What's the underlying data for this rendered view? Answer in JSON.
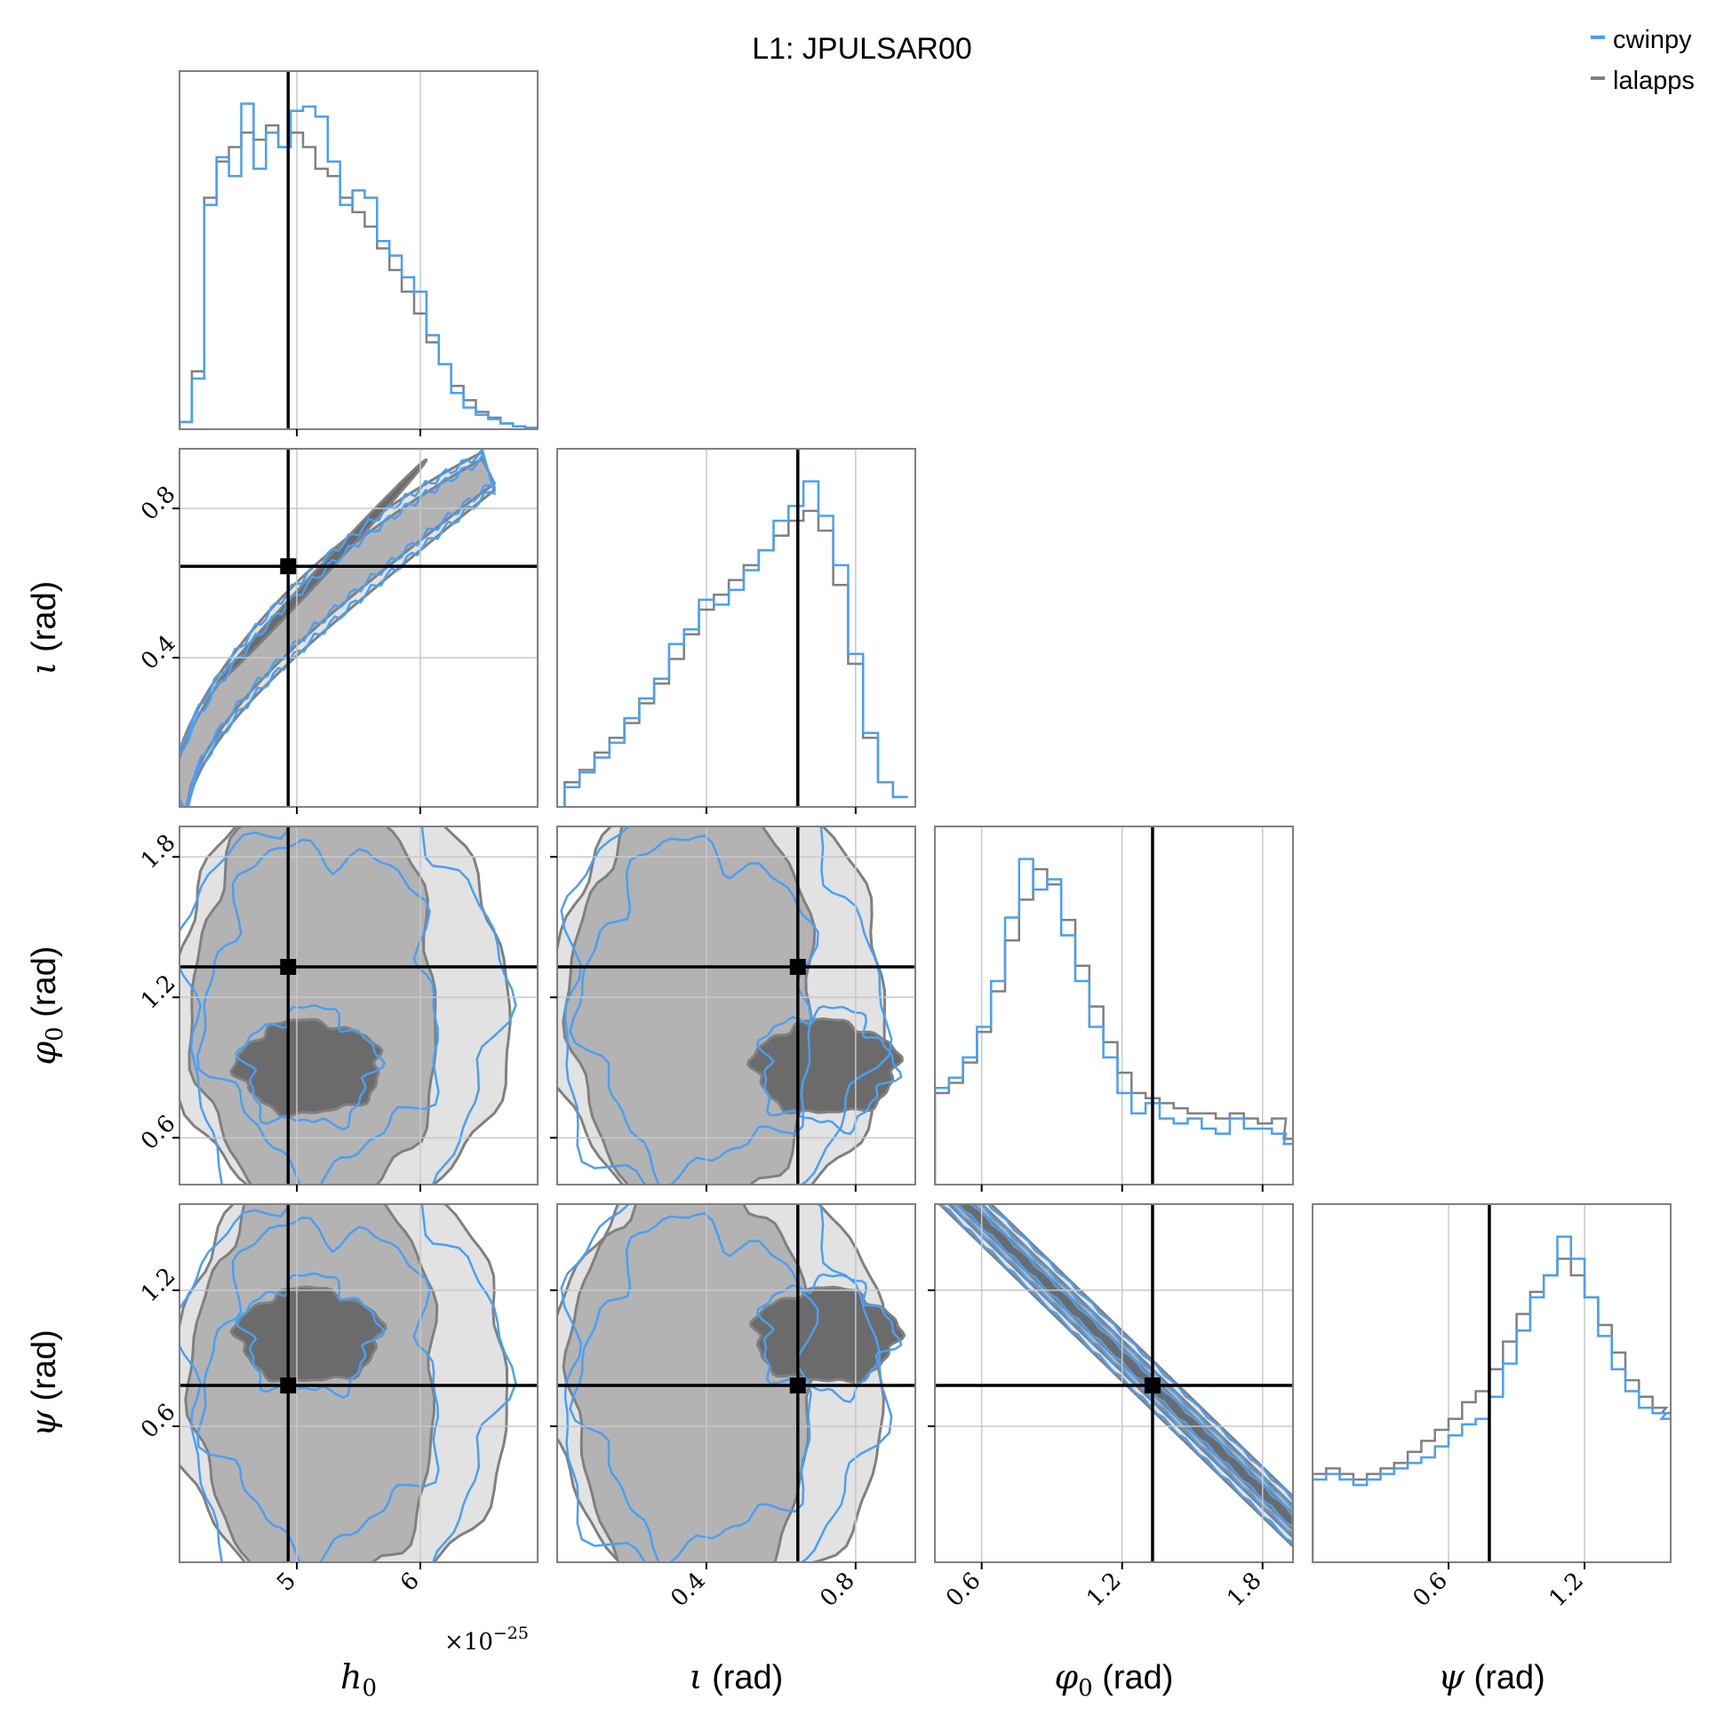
{
  "title": "L1: JPULSAR00",
  "legend": {
    "placement": "top-right",
    "entries": [
      {
        "label": "cwinpy",
        "color": "#4a9ff5"
      },
      {
        "label": "lalapps",
        "color": "#808080"
      }
    ]
  },
  "colors": {
    "cwinpy": "#4a9ff5",
    "lalapps": "#808080",
    "lalapps_fill_1": "#6b6b6b",
    "lalapps_fill_2": "#b3b3b3",
    "lalapps_fill_3": "#e2e2e2",
    "cwinpy_fill": "#d4e8fb",
    "injection": "#000000",
    "grid": "#c8c8c8",
    "frame": "#808080"
  },
  "axis_labels": {
    "h0": {
      "symbol": "h",
      "sub": "0",
      "unit": ""
    },
    "iota": {
      "symbol": "ι",
      "sub": "",
      "unit": "(rad)"
    },
    "phi0": {
      "symbol": "φ",
      "sub": "0",
      "unit": "(rad)"
    },
    "psi": {
      "symbol": "ψ",
      "sub": "",
      "unit": "(rad)"
    }
  },
  "offset_text": {
    "base": "×10",
    "exp": "−25"
  },
  "chart_data": {
    "type": "corner",
    "parameters": [
      "h0",
      "iota",
      "phi0",
      "psi"
    ],
    "ranges": {
      "h0": [
        4.05,
        6.95
      ],
      "iota": [
        0.0,
        0.96
      ],
      "phi0": [
        0.4,
        1.93
      ],
      "psi": [
        0.0,
        1.58
      ]
    },
    "ticks": {
      "h0": [
        5,
        6
      ],
      "iota": [
        0.4,
        0.8
      ],
      "phi0": [
        0.6,
        1.2,
        1.8
      ],
      "psi": [
        0.6,
        1.2
      ]
    },
    "tick_labels": {
      "h0": [
        "5",
        "6"
      ],
      "iota": [
        "0.4",
        "0.8"
      ],
      "phi0": [
        "0.6",
        "1.2",
        "1.8"
      ],
      "psi": [
        "0.6",
        "1.2"
      ]
    },
    "injection": {
      "h0": 4.93,
      "iota": 0.645,
      "phi0": 1.33,
      "psi": 0.78
    },
    "marginals": {
      "h0": {
        "x": [
          4.1,
          4.2,
          4.3,
          4.4,
          4.5,
          4.6,
          4.7,
          4.8,
          4.9,
          5.0,
          5.1,
          5.2,
          5.3,
          5.4,
          5.5,
          5.6,
          5.7,
          5.8,
          5.9,
          6.0,
          6.1,
          6.2,
          6.3,
          6.4,
          6.5,
          6.6,
          6.7,
          6.8,
          6.9
        ],
        "cwinpy": [
          5,
          35,
          155,
          188,
          175,
          225,
          180,
          205,
          195,
          220,
          223,
          216,
          185,
          155,
          165,
          160,
          130,
          120,
          105,
          95,
          65,
          45,
          25,
          15,
          10,
          7,
          4,
          2,
          1
        ],
        "lalapps": [
          5,
          40,
          160,
          185,
          195,
          205,
          200,
          210,
          195,
          205,
          195,
          180,
          175,
          160,
          150,
          140,
          125,
          110,
          95,
          80,
          60,
          45,
          30,
          20,
          12,
          8,
          4,
          2,
          1
        ]
      },
      "iota": {
        "x": [
          0.04,
          0.08,
          0.12,
          0.16,
          0.2,
          0.24,
          0.28,
          0.32,
          0.36,
          0.4,
          0.44,
          0.48,
          0.52,
          0.56,
          0.6,
          0.64,
          0.68,
          0.72,
          0.76,
          0.8,
          0.84,
          0.88,
          0.92
        ],
        "cwinpy": [
          8,
          14,
          20,
          26,
          36,
          44,
          52,
          66,
          72,
          84,
          82,
          88,
          96,
          104,
          116,
          122,
          132,
          118,
          98,
          62,
          30,
          10,
          4
        ],
        "lalapps": [
          10,
          15,
          22,
          28,
          34,
          42,
          50,
          60,
          70,
          80,
          86,
          92,
          98,
          104,
          110,
          116,
          120,
          112,
          90,
          58,
          28,
          10,
          4
        ]
      },
      "phi0": {
        "x": [
          0.43,
          0.49,
          0.55,
          0.61,
          0.67,
          0.73,
          0.79,
          0.85,
          0.91,
          0.97,
          1.03,
          1.09,
          1.15,
          1.21,
          1.27,
          1.33,
          1.39,
          1.45,
          1.51,
          1.57,
          1.63,
          1.69,
          1.75,
          1.81,
          1.87,
          1.92
        ],
        "cwinpy": [
          38,
          42,
          50,
          62,
          80,
          105,
          128,
          116,
          120,
          98,
          80,
          62,
          50,
          36,
          28,
          32,
          26,
          24,
          26,
          22,
          20,
          26,
          22,
          22,
          20,
          16
        ],
        "lalapps": [
          36,
          40,
          48,
          60,
          76,
          96,
          112,
          124,
          118,
          104,
          86,
          70,
          56,
          44,
          36,
          34,
          32,
          30,
          28,
          28,
          26,
          28,
          26,
          24,
          26,
          18
        ]
      },
      "psi": {
        "x": [
          0.03,
          0.09,
          0.15,
          0.21,
          0.27,
          0.33,
          0.39,
          0.45,
          0.51,
          0.57,
          0.63,
          0.69,
          0.75,
          0.81,
          0.87,
          0.93,
          0.99,
          1.05,
          1.11,
          1.17,
          1.23,
          1.29,
          1.35,
          1.41,
          1.47,
          1.53,
          1.57
        ],
        "cwinpy": [
          30,
          32,
          30,
          28,
          30,
          32,
          34,
          36,
          38,
          42,
          46,
          50,
          52,
          60,
          72,
          84,
          96,
          104,
          118,
          110,
          96,
          82,
          70,
          62,
          56,
          54,
          52
        ],
        "lalapps": [
          32,
          34,
          32,
          30,
          32,
          34,
          36,
          40,
          44,
          48,
          52,
          58,
          62,
          70,
          80,
          90,
          98,
          104,
          110,
          104,
          96,
          86,
          76,
          66,
          60,
          56,
          54
        ]
      }
    }
  }
}
